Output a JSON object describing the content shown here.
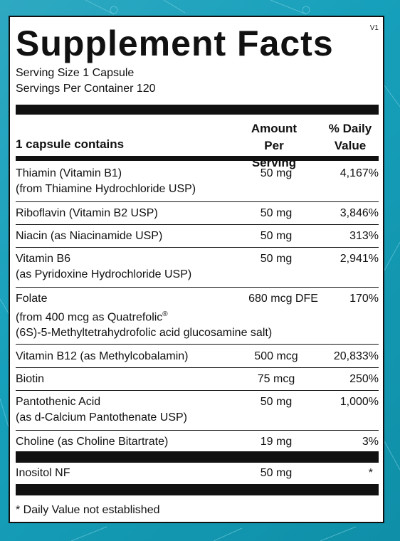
{
  "label": {
    "version": "V1",
    "title": "Supplement Facts",
    "serving_size": "Serving Size 1 Capsule",
    "servings_per_container": "Servings Per Container 120",
    "header": {
      "col1": "1 capsule contains",
      "col2_line1": "Amount Per",
      "col2_line2": "Serving",
      "col3_line1": "% Daily",
      "col3_line2": "Value"
    },
    "rows": [
      {
        "name": "Thiamin (Vitamin B1)",
        "sub": "(from Thiamine Hydrochloride USP)",
        "amount": "50 mg",
        "dv": "4,167%"
      },
      {
        "name": "Riboflavin (Vitamin B2 USP)",
        "amount": "50 mg",
        "dv": "3,846%"
      },
      {
        "name": "Niacin (as Niacinamide USP)",
        "amount": "50 mg",
        "dv": "313%"
      },
      {
        "name": "Vitamin B6",
        "sub": "(as Pyridoxine Hydrochloride USP)",
        "amount": "50 mg",
        "dv": "2,941%"
      },
      {
        "name": "Folate",
        "sub": "(from 400 mcg as Quatrefolic",
        "sub_mark": "®",
        "sub2": "(6S)-5-Methyltetrahydrofolic acid glucosamine salt)",
        "amount": "680 mcg DFE",
        "dv": "170%"
      },
      {
        "name": "Vitamin B12 (as Methylcobalamin)",
        "amount": "500 mcg",
        "dv": "20,833%"
      },
      {
        "name": "Biotin",
        "amount": "75 mcg",
        "dv": "250%"
      },
      {
        "name": "Pantothenic Acid",
        "sub": "(as d-Calcium Pantothenate USP)",
        "amount": "50 mg",
        "dv": "1,000%"
      },
      {
        "name": "Choline (as Choline Bitartrate)",
        "amount": "19 mg",
        "dv": "3%"
      },
      {
        "name": "Inositol NF",
        "amount": "50 mg",
        "dv": "*"
      }
    ],
    "footnote": "* Daily Value not established"
  }
}
